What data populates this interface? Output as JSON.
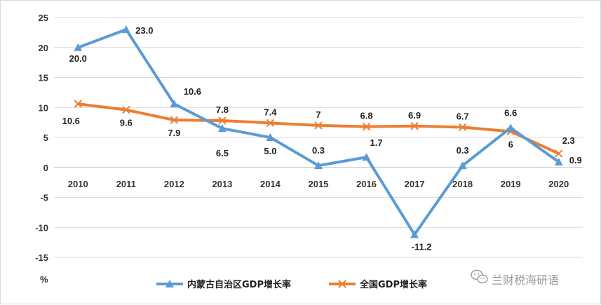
{
  "chart_data": {
    "type": "line",
    "categories": [
      "2010",
      "2011",
      "2012",
      "2013",
      "2014",
      "2015",
      "2016",
      "2017",
      "2018",
      "2019",
      "2020"
    ],
    "series": [
      {
        "name": "内蒙古自治区GDP增长率",
        "color": "#5b9bd5",
        "marker": "triangle",
        "values": [
          20.0,
          23.0,
          10.6,
          6.5,
          5.0,
          0.3,
          1.7,
          -11.2,
          0.3,
          6.6,
          0.9
        ],
        "labels": [
          "20.0",
          "23.0",
          "10.6",
          "6.5",
          "5.0",
          "0.3",
          "1.7",
          "-11.2",
          "0.3",
          "6.6",
          "0.9"
        ]
      },
      {
        "name": "全国GDP增长率",
        "color": "#ed7d31",
        "marker": "x",
        "values": [
          10.6,
          9.6,
          7.9,
          7.8,
          7.4,
          7,
          6.8,
          6.9,
          6.7,
          6,
          2.3
        ],
        "labels": [
          "10.6",
          "9.6",
          "7.9",
          "7.8",
          "7.4",
          "7",
          "6.8",
          "6.9",
          "6.7",
          "6",
          "2.3"
        ]
      }
    ],
    "ylim": [
      -15,
      25
    ],
    "yticks": [
      25,
      20,
      15,
      10,
      5,
      0,
      -5,
      -10,
      -15
    ],
    "ylabel": "%",
    "grid": true,
    "legend": "bottom"
  },
  "watermark": {
    "icon": "wechat-icon",
    "text": "兰财税海研语"
  }
}
